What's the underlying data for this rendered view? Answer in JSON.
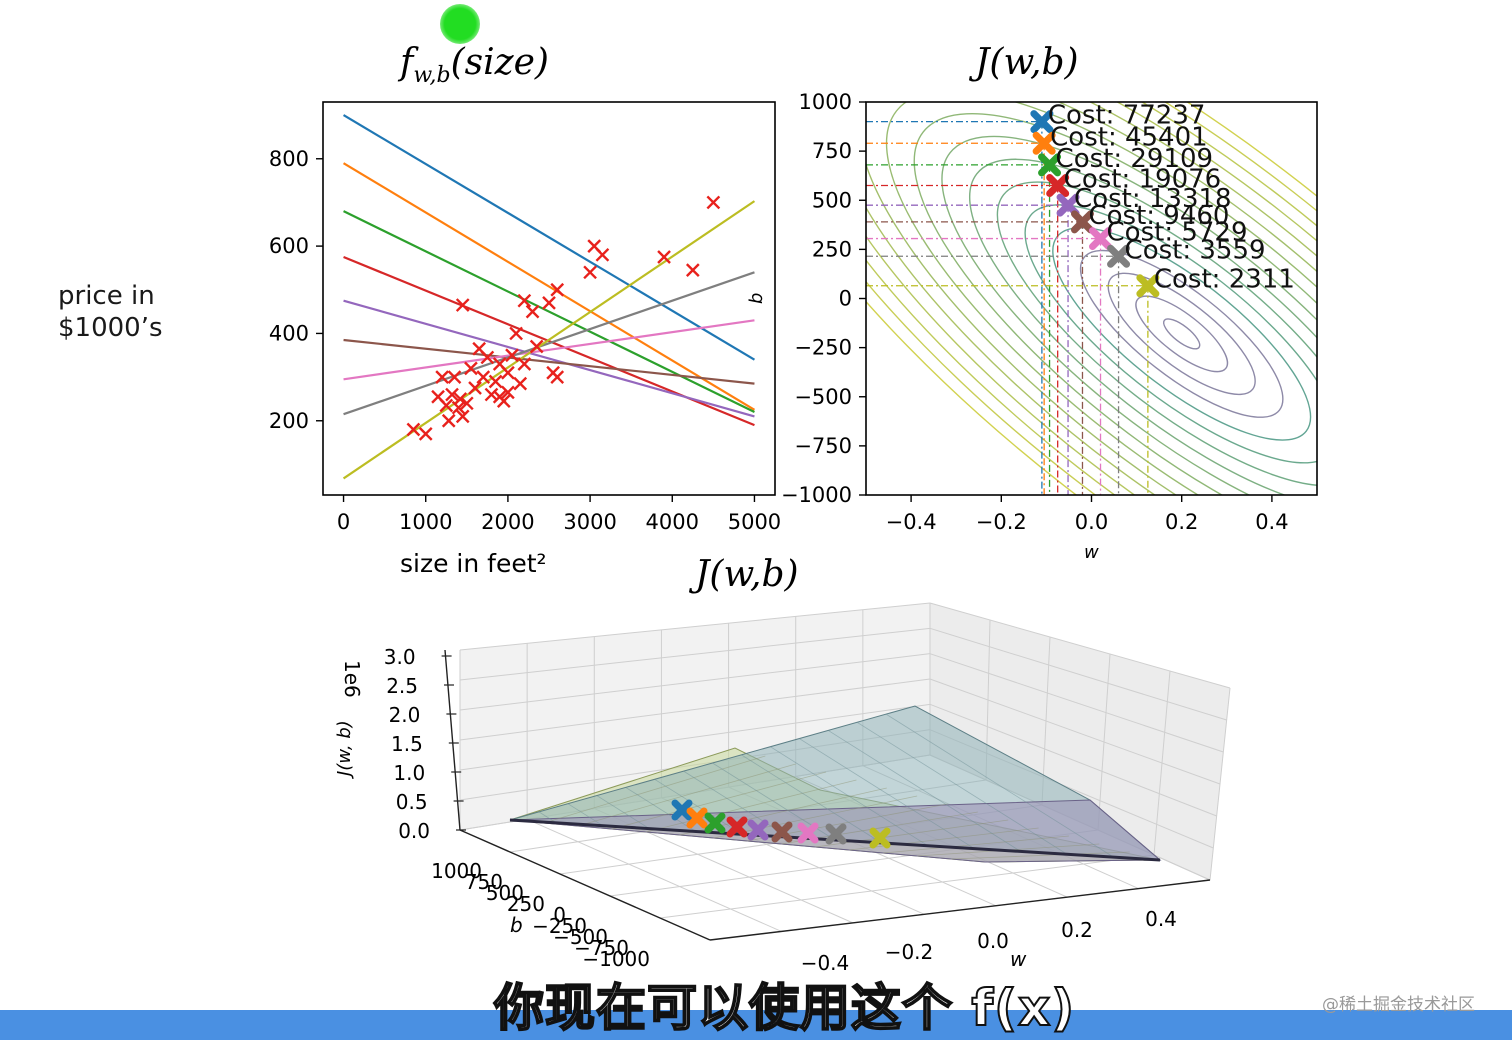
{
  "colors": [
    "#1f77b4",
    "#ff7f0e",
    "#2ca02c",
    "#d62728",
    "#9467bd",
    "#8c564b",
    "#e377c2",
    "#7f7f7f",
    "#bcbd22"
  ],
  "left_ylabel": [
    "price in",
    "$1000’s"
  ],
  "subtitle": "你现在可以使用这个 f(x)",
  "watermark": "@稀土掘金技术社区",
  "chart_data": [
    {
      "type": "scatter",
      "name": "fit",
      "title": "f_w,b(size)",
      "title_main": "f",
      "title_sub": "w,b",
      "title_rest": "(size)",
      "xlabel": "size in feet²",
      "ylabel": "price in $1000’s",
      "xlim": [
        -250,
        5250
      ],
      "ylim": [
        30,
        930
      ],
      "xticks": [
        0,
        1000,
        2000,
        3000,
        4000,
        5000
      ],
      "yticks": [
        200,
        400,
        600,
        800
      ],
      "points": [
        [
          850,
          180
        ],
        [
          1000,
          170
        ],
        [
          1150,
          255
        ],
        [
          1200,
          300
        ],
        [
          1250,
          235
        ],
        [
          1280,
          200
        ],
        [
          1320,
          260
        ],
        [
          1350,
          300
        ],
        [
          1400,
          230
        ],
        [
          1420,
          250
        ],
        [
          1450,
          210
        ],
        [
          1450,
          465
        ],
        [
          1500,
          240
        ],
        [
          1550,
          320
        ],
        [
          1600,
          275
        ],
        [
          1650,
          365
        ],
        [
          1700,
          300
        ],
        [
          1750,
          345
        ],
        [
          1800,
          260
        ],
        [
          1850,
          290
        ],
        [
          1900,
          330
        ],
        [
          1900,
          255
        ],
        [
          1950,
          245
        ],
        [
          2000,
          265
        ],
        [
          2000,
          310
        ],
        [
          2050,
          350
        ],
        [
          2100,
          400
        ],
        [
          2150,
          285
        ],
        [
          2200,
          330
        ],
        [
          2200,
          475
        ],
        [
          2300,
          450
        ],
        [
          2350,
          370
        ],
        [
          2500,
          470
        ],
        [
          2550,
          310
        ],
        [
          2600,
          300
        ],
        [
          2600,
          500
        ],
        [
          3000,
          540
        ],
        [
          3050,
          600
        ],
        [
          3150,
          580
        ],
        [
          3900,
          575
        ],
        [
          4250,
          545
        ],
        [
          4500,
          700
        ]
      ],
      "lines": [
        {
          "w": -0.112,
          "b": 900
        },
        {
          "w": -0.113,
          "b": 790
        },
        {
          "w": -0.092,
          "b": 680
        },
        {
          "w": -0.077,
          "b": 575
        },
        {
          "w": -0.053,
          "b": 475
        },
        {
          "w": -0.02,
          "b": 385
        },
        {
          "w": 0.027,
          "b": 295
        },
        {
          "w": 0.065,
          "b": 215
        },
        {
          "w": 0.127,
          "b": 68
        }
      ]
    },
    {
      "type": "contour",
      "name": "contour",
      "title": "J(w,b)",
      "xlabel": "w",
      "ylabel": "b",
      "xlim": [
        -0.5,
        0.5
      ],
      "ylim": [
        -1000,
        1000
      ],
      "xticks": [
        -0.4,
        -0.2,
        0.0,
        0.2,
        0.4
      ],
      "xtick_labels": [
        "−0.4",
        "−0.2",
        "0.0",
        "0.2",
        "0.4"
      ],
      "yticks": [
        -1000,
        -750,
        -500,
        -250,
        0,
        250,
        500,
        750,
        1000
      ],
      "ytick_labels": [
        "−1000",
        "−750",
        "−500",
        "−250",
        "0",
        "250",
        "500",
        "750",
        "1000"
      ],
      "minimum": {
        "w": 0.2,
        "b": -180
      },
      "path": [
        {
          "w": -0.11,
          "b": 900,
          "cost": "77237"
        },
        {
          "w": -0.105,
          "b": 790,
          "cost": "45401"
        },
        {
          "w": -0.093,
          "b": 680,
          "cost": "29109"
        },
        {
          "w": -0.075,
          "b": 575,
          "cost": "19076"
        },
        {
          "w": -0.052,
          "b": 475,
          "cost": "13318"
        },
        {
          "w": -0.02,
          "b": 390,
          "cost": "9460"
        },
        {
          "w": 0.02,
          "b": 305,
          "cost": "5729"
        },
        {
          "w": 0.06,
          "b": 215,
          "cost": "3559"
        },
        {
          "w": 0.125,
          "b": 65,
          "cost": "2311"
        }
      ]
    },
    {
      "type": "surface3d",
      "name": "surface",
      "title": "J(w,b)",
      "xlabel": "w",
      "ylabel": "b",
      "zlabel": "J(w, b)",
      "z_exponent": "1e6",
      "zticks": [
        "0.0",
        "0.5",
        "1.0",
        "1.5",
        "2.0",
        "2.5",
        "3.0"
      ],
      "wticks": [
        "−0.4",
        "−0.2",
        "0.0",
        "0.2",
        "0.4"
      ],
      "bticks": [
        "1000",
        "750",
        "500",
        "250",
        "0",
        "−250",
        "−500",
        "−750",
        "−1000"
      ]
    }
  ]
}
